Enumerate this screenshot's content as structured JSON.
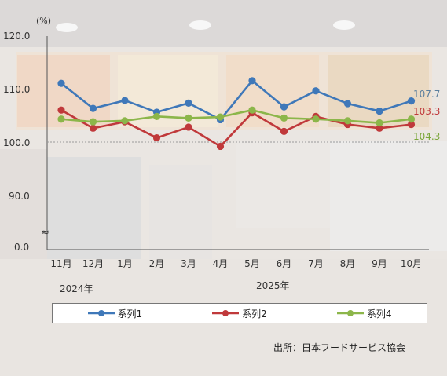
{
  "chart_data": {
    "type": "line",
    "unit_label": "(%)",
    "y_ticks": [
      "120.0",
      "110.0",
      "100.0",
      "90.0",
      "0.0"
    ],
    "axis_break_symbol": "≈",
    "reference_line": 100,
    "categories": [
      "11月",
      "12月",
      "1月",
      "2月",
      "3月",
      "4月",
      "5月",
      "6月",
      "7月",
      "8月",
      "9月",
      "10月"
    ],
    "year_labels": [
      "2024年",
      "2025年"
    ],
    "series": [
      {
        "name": "系列1",
        "color": "#3f78b9",
        "values": [
          111.0,
          106.3,
          107.8,
          105.6,
          107.3,
          104.2,
          111.5,
          106.6,
          109.6,
          107.2,
          105.8,
          107.7
        ],
        "end_label": "107.7",
        "end_label_color": "#5b7f9e"
      },
      {
        "name": "系列2",
        "color": "#c0393b",
        "values": [
          106.0,
          102.6,
          103.8,
          100.8,
          102.8,
          99.2,
          105.5,
          102.0,
          104.8,
          103.3,
          102.6,
          103.3
        ],
        "end_label": "103.3",
        "end_label_color": "#c0393b"
      },
      {
        "name": "系列4",
        "color": "#8cb64a",
        "values": [
          104.3,
          103.8,
          104.0,
          104.8,
          104.5,
          104.7,
          106.0,
          104.5,
          104.3,
          104.0,
          103.6,
          104.3
        ],
        "end_label": "104.3",
        "end_label_color": "#7aa63a"
      }
    ]
  },
  "source": "出所：日本フードサービス協会"
}
